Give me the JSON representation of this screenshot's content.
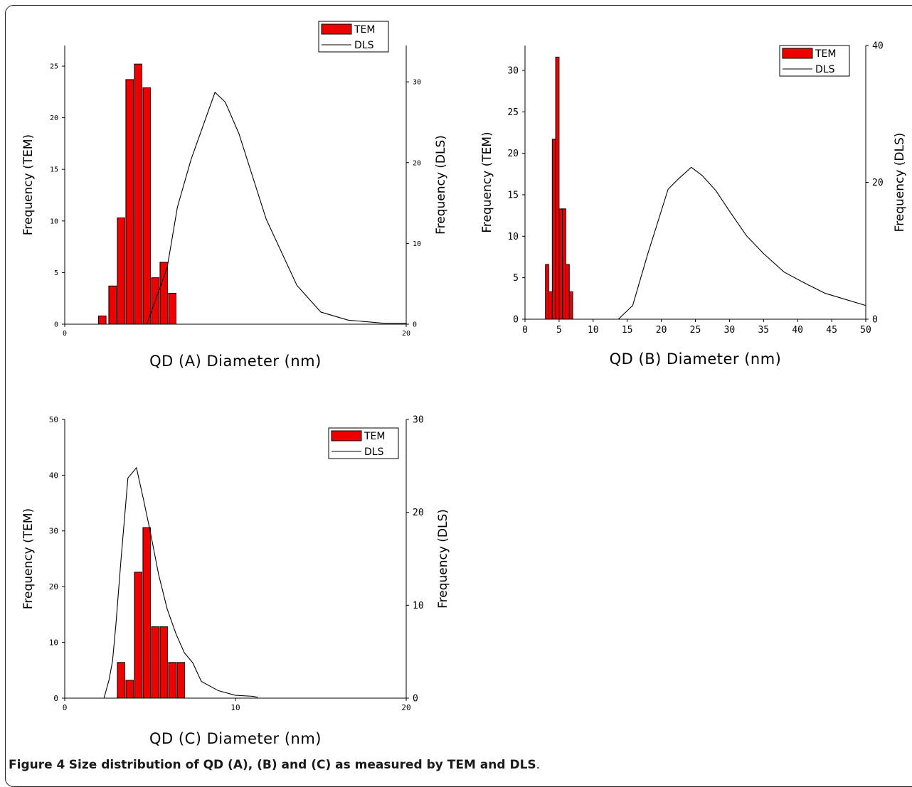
{
  "caption": {
    "label": "Figure 4",
    "text": "Size distribution of QD (A), (B) and (C) as measured by TEM and DLS",
    "end": "."
  },
  "colors": {
    "bar_fill": "#ee0000",
    "bar_stroke": "#000000",
    "line": "#000000"
  },
  "chart_data": [
    {
      "id": "A",
      "type": "bar+line",
      "xlabel": "QD (A) Diameter (nm)",
      "ylabel_left": "Frequency (TEM)",
      "ylabel_right": "Frequency (DLS)",
      "xlim": [
        0,
        20
      ],
      "ylim_left": [
        0,
        27
      ],
      "ylim_right": [
        0,
        34.5
      ],
      "xticks": [
        0,
        20
      ],
      "yticks_left": [
        0,
        5,
        10,
        15,
        20,
        25
      ],
      "yticks_right": [
        0,
        10,
        20,
        30
      ],
      "legend": {
        "position": "top-right",
        "entries": [
          "TEM",
          "DLS"
        ]
      },
      "bar_width": 0.44,
      "series": [
        {
          "name": "TEM",
          "kind": "bar",
          "x": [
            2.2,
            2.8,
            3.3,
            3.8,
            4.3,
            4.8,
            5.3,
            5.8,
            6.3
          ],
          "values": [
            0.8,
            3.7,
            10.3,
            23.7,
            25.2,
            22.9,
            4.5,
            6.0,
            3.0
          ]
        },
        {
          "name": "DLS",
          "kind": "line",
          "x": [
            4.8,
            5.4,
            6.0,
            6.6,
            7.4,
            8.8,
            9.4,
            10.2,
            11.8,
            13.6,
            15.0,
            16.6,
            18.8,
            20.0
          ],
          "values": [
            0,
            3.5,
            7.0,
            14.5,
            20.4,
            28.7,
            27.5,
            23.6,
            13.0,
            4.8,
            1.5,
            0.5,
            0.1,
            0.1
          ]
        }
      ]
    },
    {
      "id": "B",
      "type": "bar+line",
      "xlabel": "QD (B) Diameter (nm)",
      "ylabel_left": "Frequency (TEM)",
      "ylabel_right": "Frequency (DLS)",
      "xlim": [
        0,
        50
      ],
      "ylim_left": [
        0,
        33
      ],
      "ylim_right": [
        0,
        40
      ],
      "xticks": [
        0,
        5,
        10,
        15,
        20,
        25,
        30,
        35,
        40,
        45,
        50
      ],
      "yticks_left": [
        0,
        5,
        10,
        15,
        20,
        25,
        30
      ],
      "yticks_right": [
        0,
        20,
        40
      ],
      "legend": {
        "position": "top-right",
        "entries": [
          "TEM",
          "DLS"
        ]
      },
      "bar_width": 0.5,
      "series": [
        {
          "name": "TEM",
          "kind": "bar",
          "x": [
            3.25,
            3.75,
            4.25,
            4.75,
            5.25,
            5.75,
            6.25,
            6.75
          ],
          "values": [
            6.6,
            3.3,
            21.7,
            31.6,
            13.3,
            13.3,
            6.6,
            3.3
          ]
        },
        {
          "name": "DLS",
          "kind": "line",
          "x": [
            13.7,
            15.8,
            18.0,
            21.0,
            22.5,
            24.4,
            26.0,
            28.0,
            30.0,
            32.5,
            35.0,
            38.0,
            41.0,
            44.0,
            47.0,
            50.0
          ],
          "values": [
            0,
            2.0,
            9.5,
            19.0,
            20.5,
            22.2,
            21.0,
            18.8,
            15.8,
            12.2,
            9.6,
            6.9,
            5.3,
            3.8,
            2.9,
            2.0
          ]
        }
      ]
    },
    {
      "id": "C",
      "type": "bar+line",
      "xlabel": "QD (C) Diameter (nm)",
      "ylabel_left": "Frequency (TEM)",
      "ylabel_right": "Frequency (DLS)",
      "xlim": [
        0,
        20
      ],
      "ylim_left": [
        0,
        50
      ],
      "ylim_right": [
        0,
        30
      ],
      "xticks": [
        0,
        10,
        20
      ],
      "yticks_left": [
        0,
        10,
        20,
        30,
        40,
        50
      ],
      "yticks_right": [
        0,
        10,
        20,
        30
      ],
      "legend": {
        "position": "top-right",
        "entries": [
          "TEM",
          "DLS"
        ]
      },
      "bar_width": 0.44,
      "series": [
        {
          "name": "TEM",
          "kind": "bar",
          "x": [
            3.3,
            3.8,
            4.3,
            4.8,
            5.3,
            5.8,
            6.3,
            6.8
          ],
          "values": [
            6.4,
            3.2,
            22.6,
            30.6,
            12.8,
            12.8,
            6.4,
            6.4
          ]
        },
        {
          "name": "DLS",
          "kind": "line",
          "x": [
            2.3,
            2.6,
            2.8,
            3.0,
            3.3,
            3.7,
            4.2,
            4.6,
            5.0,
            5.5,
            6.0,
            6.5,
            7.0,
            7.5,
            8.0,
            9.0,
            10.0,
            11.0,
            11.3
          ],
          "values": [
            0,
            2.0,
            4.0,
            8.0,
            15.0,
            23.7,
            24.8,
            21.5,
            18.0,
            13.3,
            9.6,
            7.0,
            4.9,
            3.8,
            1.8,
            0.8,
            0.3,
            0.2,
            0.1
          ]
        }
      ]
    }
  ]
}
